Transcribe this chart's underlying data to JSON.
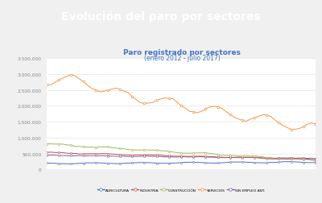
{
  "title_banner": "Evolución del paro por sectores",
  "title_banner_bg": "#1a3d4f",
  "title_banner_color": "#ffffff",
  "subtitle": "Paro registrado por sectores",
  "subtitle2": "(enero 2012 - julio 2017)",
  "subtitle_color": "#4472c4",
  "bg_color": "#f0f0f0",
  "plot_bg": "#ffffff",
  "ylim": [
    0,
    3500000
  ],
  "yticks": [
    0,
    500000,
    1000000,
    1500000,
    2000000,
    2500000,
    3000000,
    3500000
  ],
  "ytick_labels": [
    "0",
    "500.000",
    "1.000.000",
    "1.500.000",
    "2.000.000",
    "2.500.000",
    "3.000.000",
    "3.500.000"
  ],
  "n_points": 67,
  "colors": {
    "agricultura": "#4472c4",
    "industria": "#c0504d",
    "construccion": "#9bbb59",
    "servicios": "#f79646",
    "sin_empleo": "#8064a2"
  },
  "legend_labels": [
    "AGRICULTURA",
    "INDUSTRIA",
    "CONSTRUCCIÓN",
    "SERVICIOS",
    "SIN EMPLEO ANT."
  ]
}
